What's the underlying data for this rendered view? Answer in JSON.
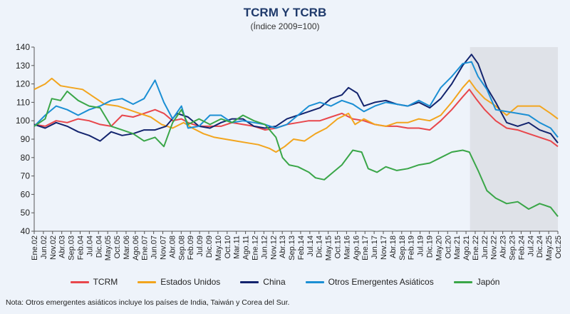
{
  "chart_data": {
    "type": "line",
    "title": "TCRM Y TCRB",
    "subtitle": "(Índice 2009=100)",
    "ylim": [
      40,
      140
    ],
    "yticks": [
      40,
      50,
      60,
      70,
      80,
      90,
      100,
      110,
      120,
      130,
      140
    ],
    "xlim": [
      2002.0,
      2025.83
    ],
    "shaded_region": [
      2021.83,
      2025.83
    ],
    "xtick_labels": [
      "Ene.02",
      "Jun.02",
      "Nov.02",
      "Abr.03",
      "Sep.03",
      "Feb.04",
      "Jul.04",
      "Dic.04",
      "May.05",
      "Oct.05",
      "Mar.06",
      "Ago.06",
      "Ene.07",
      "Jun.07",
      "Nov.07",
      "Abr.08",
      "Sep.08",
      "Feb.09",
      "Jul.09",
      "Dic.09",
      "May.10",
      "Oct.10",
      "Mar.11",
      "Ago.11",
      "Ene.12",
      "Jun.12",
      "Nov.12",
      "Abr.13",
      "Sep.13",
      "Feb.14",
      "Jul.14",
      "Dic.14",
      "May.15",
      "Oct.15",
      "Mar.16",
      "Ago.16",
      "Ene.17",
      "Jun.17",
      "Nov.17",
      "Abr.18",
      "Sep.18",
      "Feb.19",
      "Jul.19",
      "Dic.19",
      "May.20",
      "Oct.20",
      "Mar.21",
      "Ago.21",
      "Ene.22",
      "Jun.22",
      "Nov.22",
      "Abr.23",
      "Sep.23",
      "Feb.24",
      "Jul.24",
      "Dic.24",
      "May.25",
      "Oct.25"
    ],
    "series": [
      {
        "name": "TCRM",
        "color": "#e8474c",
        "points": [
          [
            2002.0,
            98
          ],
          [
            2002.5,
            97
          ],
          [
            2003.0,
            100
          ],
          [
            2003.5,
            99
          ],
          [
            2004.0,
            101
          ],
          [
            2004.5,
            100
          ],
          [
            2005.0,
            98
          ],
          [
            2005.5,
            97
          ],
          [
            2006.0,
            103
          ],
          [
            2006.5,
            102
          ],
          [
            2007.0,
            104
          ],
          [
            2007.5,
            106
          ],
          [
            2007.9,
            104
          ],
          [
            2008.3,
            100
          ],
          [
            2008.7,
            101
          ],
          [
            2009.0,
            99
          ],
          [
            2009.5,
            97
          ],
          [
            2010.0,
            97
          ],
          [
            2010.5,
            97
          ],
          [
            2011.0,
            99
          ],
          [
            2011.5,
            98
          ],
          [
            2012.0,
            97
          ],
          [
            2012.5,
            95
          ],
          [
            2013.0,
            96
          ],
          [
            2013.5,
            98
          ],
          [
            2014.0,
            99
          ],
          [
            2014.5,
            100
          ],
          [
            2015.0,
            100
          ],
          [
            2015.5,
            102
          ],
          [
            2016.0,
            104
          ],
          [
            2016.5,
            101
          ],
          [
            2017.0,
            100
          ],
          [
            2017.5,
            98
          ],
          [
            2018.0,
            97
          ],
          [
            2018.5,
            97
          ],
          [
            2019.0,
            96
          ],
          [
            2019.5,
            96
          ],
          [
            2020.0,
            95
          ],
          [
            2020.5,
            100
          ],
          [
            2021.0,
            106
          ],
          [
            2021.5,
            113
          ],
          [
            2021.8,
            117
          ],
          [
            2022.1,
            112
          ],
          [
            2022.5,
            106
          ],
          [
            2023.0,
            100
          ],
          [
            2023.5,
            96
          ],
          [
            2024.0,
            95
          ],
          [
            2024.5,
            93
          ],
          [
            2025.0,
            91
          ],
          [
            2025.5,
            89
          ],
          [
            2025.83,
            86
          ]
        ]
      },
      {
        "name": "Estados Unidos",
        "color": "#f2a51e",
        "points": [
          [
            2002.0,
            117
          ],
          [
            2002.5,
            120
          ],
          [
            2002.8,
            123
          ],
          [
            2003.2,
            119
          ],
          [
            2003.7,
            118
          ],
          [
            2004.2,
            117
          ],
          [
            2004.7,
            113
          ],
          [
            2005.2,
            109
          ],
          [
            2005.8,
            108
          ],
          [
            2006.3,
            106
          ],
          [
            2006.8,
            104
          ],
          [
            2007.3,
            102
          ],
          [
            2007.8,
            98
          ],
          [
            2008.3,
            96
          ],
          [
            2008.8,
            99
          ],
          [
            2009.2,
            96
          ],
          [
            2009.7,
            93
          ],
          [
            2010.2,
            91
          ],
          [
            2010.7,
            90
          ],
          [
            2011.2,
            89
          ],
          [
            2011.7,
            88
          ],
          [
            2012.2,
            87
          ],
          [
            2012.7,
            85
          ],
          [
            2013.0,
            83
          ],
          [
            2013.4,
            86
          ],
          [
            2013.8,
            90
          ],
          [
            2014.3,
            89
          ],
          [
            2014.8,
            93
          ],
          [
            2015.3,
            96
          ],
          [
            2015.8,
            101
          ],
          [
            2016.3,
            104
          ],
          [
            2016.6,
            98
          ],
          [
            2017.0,
            101
          ],
          [
            2017.5,
            98
          ],
          [
            2018.0,
            97
          ],
          [
            2018.5,
            99
          ],
          [
            2019.0,
            99
          ],
          [
            2019.5,
            101
          ],
          [
            2020.0,
            100
          ],
          [
            2020.5,
            103
          ],
          [
            2021.0,
            110
          ],
          [
            2021.5,
            118
          ],
          [
            2021.8,
            122
          ],
          [
            2022.1,
            117
          ],
          [
            2022.5,
            112
          ],
          [
            2023.0,
            108
          ],
          [
            2023.5,
            103
          ],
          [
            2024.0,
            108
          ],
          [
            2024.5,
            108
          ],
          [
            2025.0,
            108
          ],
          [
            2025.5,
            104
          ],
          [
            2025.83,
            101
          ]
        ]
      },
      {
        "name": "China",
        "color": "#13246e",
        "points": [
          [
            2002.0,
            98
          ],
          [
            2002.5,
            96
          ],
          [
            2003.0,
            99
          ],
          [
            2003.5,
            97
          ],
          [
            2004.0,
            94
          ],
          [
            2004.5,
            92
          ],
          [
            2005.0,
            89
          ],
          [
            2005.5,
            94
          ],
          [
            2006.0,
            92
          ],
          [
            2006.5,
            93
          ],
          [
            2007.0,
            95
          ],
          [
            2007.5,
            95
          ],
          [
            2008.0,
            97
          ],
          [
            2008.5,
            104
          ],
          [
            2009.0,
            102
          ],
          [
            2009.5,
            97
          ],
          [
            2010.0,
            96
          ],
          [
            2010.5,
            99
          ],
          [
            2011.0,
            101
          ],
          [
            2011.5,
            101
          ],
          [
            2012.0,
            97
          ],
          [
            2012.5,
            96
          ],
          [
            2013.0,
            97
          ],
          [
            2013.5,
            101
          ],
          [
            2014.0,
            103
          ],
          [
            2014.5,
            105
          ],
          [
            2015.0,
            107
          ],
          [
            2015.5,
            112
          ],
          [
            2016.0,
            114
          ],
          [
            2016.3,
            118
          ],
          [
            2016.7,
            115
          ],
          [
            2017.0,
            108
          ],
          [
            2017.5,
            110
          ],
          [
            2018.0,
            111
          ],
          [
            2018.5,
            109
          ],
          [
            2019.0,
            108
          ],
          [
            2019.5,
            110
          ],
          [
            2020.0,
            107
          ],
          [
            2020.5,
            112
          ],
          [
            2021.0,
            120
          ],
          [
            2021.5,
            130
          ],
          [
            2021.9,
            136
          ],
          [
            2022.2,
            131
          ],
          [
            2022.6,
            118
          ],
          [
            2023.0,
            110
          ],
          [
            2023.5,
            99
          ],
          [
            2024.0,
            97
          ],
          [
            2024.5,
            99
          ],
          [
            2025.0,
            95
          ],
          [
            2025.5,
            93
          ],
          [
            2025.83,
            88
          ]
        ]
      },
      {
        "name": "Otros Emergentes Asiáticos",
        "color": "#1b8fd4",
        "points": [
          [
            2002.0,
            97
          ],
          [
            2002.5,
            103
          ],
          [
            2003.0,
            108
          ],
          [
            2003.5,
            106
          ],
          [
            2004.0,
            103
          ],
          [
            2004.5,
            106
          ],
          [
            2005.0,
            108
          ],
          [
            2005.5,
            111
          ],
          [
            2006.0,
            112
          ],
          [
            2006.5,
            109
          ],
          [
            2007.0,
            112
          ],
          [
            2007.5,
            122
          ],
          [
            2007.9,
            110
          ],
          [
            2008.3,
            101
          ],
          [
            2008.7,
            108
          ],
          [
            2009.0,
            96
          ],
          [
            2009.5,
            97
          ],
          [
            2010.0,
            103
          ],
          [
            2010.5,
            103
          ],
          [
            2011.0,
            99
          ],
          [
            2011.5,
            100
          ],
          [
            2012.0,
            99
          ],
          [
            2012.5,
            98
          ],
          [
            2013.0,
            96
          ],
          [
            2013.5,
            98
          ],
          [
            2014.0,
            103
          ],
          [
            2014.5,
            108
          ],
          [
            2015.0,
            110
          ],
          [
            2015.5,
            108
          ],
          [
            2016.0,
            111
          ],
          [
            2016.5,
            109
          ],
          [
            2017.0,
            105
          ],
          [
            2017.5,
            108
          ],
          [
            2018.0,
            110
          ],
          [
            2018.5,
            109
          ],
          [
            2019.0,
            108
          ],
          [
            2019.5,
            111
          ],
          [
            2020.0,
            108
          ],
          [
            2020.5,
            118
          ],
          [
            2021.0,
            124
          ],
          [
            2021.5,
            131
          ],
          [
            2021.9,
            132
          ],
          [
            2022.2,
            124
          ],
          [
            2022.6,
            117
          ],
          [
            2023.0,
            106
          ],
          [
            2023.5,
            105
          ],
          [
            2024.0,
            104
          ],
          [
            2024.5,
            103
          ],
          [
            2025.0,
            99
          ],
          [
            2025.5,
            96
          ],
          [
            2025.83,
            91
          ]
        ]
      },
      {
        "name": "Japón",
        "color": "#3aa648",
        "points": [
          [
            2002.0,
            97
          ],
          [
            2002.5,
            101
          ],
          [
            2002.8,
            112
          ],
          [
            2003.2,
            111
          ],
          [
            2003.5,
            116
          ],
          [
            2004.0,
            111
          ],
          [
            2004.5,
            108
          ],
          [
            2005.0,
            107
          ],
          [
            2005.5,
            97
          ],
          [
            2006.0,
            95
          ],
          [
            2006.5,
            93
          ],
          [
            2007.0,
            89
          ],
          [
            2007.5,
            91
          ],
          [
            2007.9,
            86
          ],
          [
            2008.3,
            99
          ],
          [
            2008.7,
            106
          ],
          [
            2009.0,
            98
          ],
          [
            2009.5,
            101
          ],
          [
            2010.0,
            98
          ],
          [
            2010.5,
            101
          ],
          [
            2011.0,
            99
          ],
          [
            2011.5,
            103
          ],
          [
            2012.0,
            100
          ],
          [
            2012.5,
            98
          ],
          [
            2013.0,
            91
          ],
          [
            2013.3,
            80
          ],
          [
            2013.6,
            76
          ],
          [
            2014.0,
            75
          ],
          [
            2014.5,
            72
          ],
          [
            2014.8,
            69
          ],
          [
            2015.2,
            68
          ],
          [
            2015.6,
            72
          ],
          [
            2016.0,
            76
          ],
          [
            2016.5,
            84
          ],
          [
            2016.9,
            83
          ],
          [
            2017.2,
            74
          ],
          [
            2017.6,
            72
          ],
          [
            2018.0,
            75
          ],
          [
            2018.5,
            73
          ],
          [
            2019.0,
            74
          ],
          [
            2019.5,
            76
          ],
          [
            2020.0,
            77
          ],
          [
            2020.5,
            80
          ],
          [
            2021.0,
            83
          ],
          [
            2021.5,
            84
          ],
          [
            2021.8,
            83
          ],
          [
            2022.2,
            73
          ],
          [
            2022.6,
            62
          ],
          [
            2023.0,
            58
          ],
          [
            2023.5,
            55
          ],
          [
            2024.0,
            56
          ],
          [
            2024.5,
            52
          ],
          [
            2025.0,
            55
          ],
          [
            2025.5,
            53
          ],
          [
            2025.83,
            48
          ]
        ]
      }
    ]
  },
  "footnote": "Nota: Otros emergentes asiáticos incluye los países de India, Taiwán y Corea del Sur."
}
